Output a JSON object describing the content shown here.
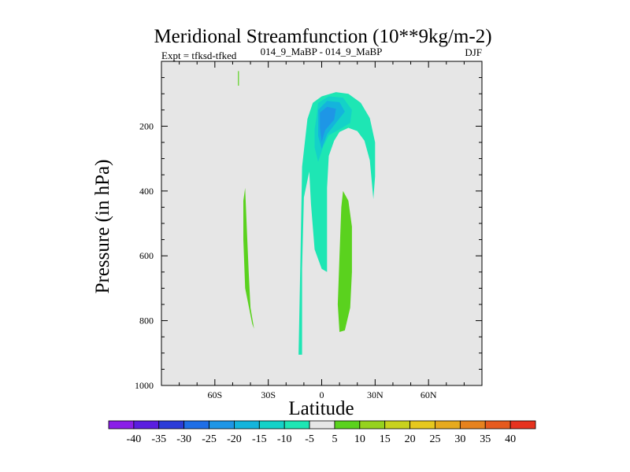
{
  "chart_data": {
    "type": "contour",
    "title": "Meridional Streamfunction (10**9kg/m-2)",
    "left_string": "Expt = tfksd-tfked",
    "center_string": "014_9_MaBP - 014_9_MaBP",
    "right_string": "DJF",
    "xlabel": "Latitude",
    "ylabel": "Pressure (in hPa)",
    "xlim": [
      -90,
      90
    ],
    "ylim": [
      1000,
      0
    ],
    "xticks": [
      -60,
      -30,
      0,
      30,
      60
    ],
    "xtick_labels": [
      "60S",
      "30S",
      "0",
      "30N",
      "60N"
    ],
    "yticks": [
      200,
      400,
      600,
      800,
      1000
    ],
    "ytick_labels": [
      "200",
      "400",
      "600",
      "800",
      "1000"
    ],
    "levels": [
      -40,
      -35,
      -30,
      -25,
      -20,
      -15,
      -10,
      -5,
      5,
      10,
      15,
      20,
      25,
      30,
      35,
      40
    ],
    "colorbar_labels": [
      "-40",
      "-35",
      "-30",
      "-25",
      "-20",
      "-15",
      "-10",
      "-5",
      "5",
      "10",
      "15",
      "20",
      "25",
      "30",
      "35",
      "40"
    ],
    "colorbar_colors": [
      "#8a1ee8",
      "#5a1ee0",
      "#2b3cd8",
      "#1e6ee6",
      "#1e96e6",
      "#14b4dc",
      "#14d2c8",
      "#1ee6b4",
      "#e6e6e6",
      "#5ad21e",
      "#96d21e",
      "#c8d21e",
      "#e6c81e",
      "#e6aa1e",
      "#e6821e",
      "#e65a1e",
      "#e6321e"
    ],
    "background_color": "#e6e6e6",
    "contour_regions": [
      {
        "name": "nh-upper-negative-cell",
        "level": -5,
        "points": [
          [
            -13,
            905
          ],
          [
            -12,
            620
          ],
          [
            -11,
            325
          ],
          [
            -8,
            178
          ],
          [
            -5,
            128
          ],
          [
            0,
            108
          ],
          [
            8,
            95
          ],
          [
            15,
            100
          ],
          [
            22,
            128
          ],
          [
            27,
            175
          ],
          [
            30,
            250
          ],
          [
            30,
            355
          ],
          [
            29,
            425
          ],
          [
            27,
            305
          ],
          [
            24,
            245
          ],
          [
            20,
            215
          ],
          [
            15,
            205
          ],
          [
            10,
            218
          ],
          [
            7,
            245
          ],
          [
            4,
            292
          ],
          [
            3,
            390
          ],
          [
            3,
            650
          ],
          [
            0,
            640
          ],
          [
            -4,
            580
          ],
          [
            -6,
            440
          ],
          [
            -7,
            340
          ],
          [
            -10,
            420
          ],
          [
            -11,
            640
          ],
          [
            -11,
            905
          ]
        ]
      },
      {
        "name": "core-minus-10",
        "level": -10,
        "points": [
          [
            -3,
            175
          ],
          [
            -2,
            128
          ],
          [
            4,
            108
          ],
          [
            12,
            112
          ],
          [
            17,
            150
          ],
          [
            16,
            190
          ],
          [
            10,
            210
          ],
          [
            4,
            228
          ],
          [
            1,
            260
          ],
          [
            -2,
            310
          ],
          [
            -4,
            265
          ],
          [
            -4,
            210
          ]
        ]
      },
      {
        "name": "core-minus-15",
        "level": -15,
        "points": [
          [
            -2,
            150
          ],
          [
            3,
            122
          ],
          [
            10,
            126
          ],
          [
            13,
            155
          ],
          [
            8,
            190
          ],
          [
            3,
            225
          ],
          [
            0,
            270
          ],
          [
            -2,
            230
          ]
        ]
      },
      {
        "name": "core-minus-20",
        "level": -20,
        "points": [
          [
            -1,
            158
          ],
          [
            3,
            140
          ],
          [
            8,
            146
          ],
          [
            7,
            180
          ],
          [
            2,
            212
          ],
          [
            0,
            248
          ],
          [
            -1,
            205
          ]
        ]
      },
      {
        "name": "sh-positive-branch",
        "level": 5,
        "points": [
          [
            -43,
            390
          ],
          [
            -42,
            520
          ],
          [
            -41,
            650
          ],
          [
            -40,
            760
          ],
          [
            -38,
            825
          ],
          [
            -39,
            810
          ],
          [
            -43,
            700
          ],
          [
            -44,
            550
          ],
          [
            -44,
            430
          ]
        ]
      },
      {
        "name": "eq-positive-branch",
        "level": 5,
        "points": [
          [
            12,
            400
          ],
          [
            15,
            430
          ],
          [
            17,
            510
          ],
          [
            17,
            650
          ],
          [
            16,
            760
          ],
          [
            13,
            830
          ],
          [
            10,
            835
          ],
          [
            9,
            750
          ],
          [
            10,
            600
          ],
          [
            11,
            450
          ]
        ]
      },
      {
        "name": "upper-positive-sliver",
        "level": 5,
        "points": [
          [
            -47,
            30
          ],
          [
            -46.5,
            30
          ],
          [
            -46.5,
            75
          ],
          [
            -47,
            75
          ]
        ]
      }
    ]
  }
}
